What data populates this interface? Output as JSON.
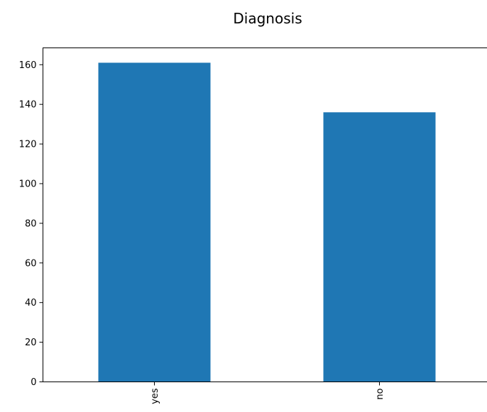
{
  "chart_data": {
    "type": "bar",
    "title": "Diagnosis",
    "categories": [
      "yes",
      "no"
    ],
    "values": [
      161,
      136
    ],
    "xlabel": "",
    "ylabel": "",
    "ylim": [
      0,
      168.5
    ],
    "yticks": [
      0,
      20,
      40,
      60,
      80,
      100,
      120,
      140,
      160
    ],
    "grid": false,
    "legend": "none",
    "bar_color": "#1f77b4",
    "x_tick_rotation": 90
  }
}
